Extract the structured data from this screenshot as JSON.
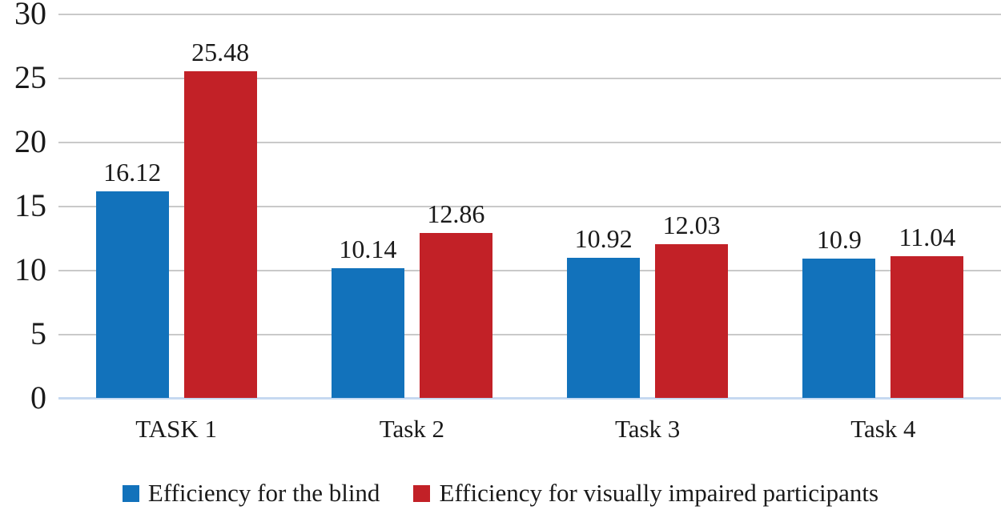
{
  "chart_data": {
    "type": "bar",
    "title": "",
    "xlabel": "",
    "ylabel": "",
    "categories": [
      "TASK 1",
      "Task 2",
      "Task 3",
      "Task 4"
    ],
    "series": [
      {
        "name": "Efficiency for the blind",
        "color": "#1272bb",
        "values": [
          16.12,
          10.14,
          10.92,
          10.9
        ]
      },
      {
        "name": "Efficiency for visually impaired participants",
        "color": "#c22127",
        "values": [
          25.48,
          12.86,
          12.03,
          11.04
        ]
      }
    ],
    "data_labels": [
      [
        "16.12",
        "10.14",
        "10.92",
        "10.9"
      ],
      [
        "25.48",
        "12.86",
        "12.03",
        "11.04"
      ]
    ],
    "ylim": [
      0,
      30
    ],
    "yticks": [
      0,
      5,
      10,
      15,
      20,
      25,
      30
    ],
    "grid": true,
    "legend_position": "bottom",
    "colors": {
      "gridline": "#c9c9c9",
      "baseline": "#c6d9f1",
      "text": "#1a1a1a",
      "background": "#ffffff"
    }
  }
}
